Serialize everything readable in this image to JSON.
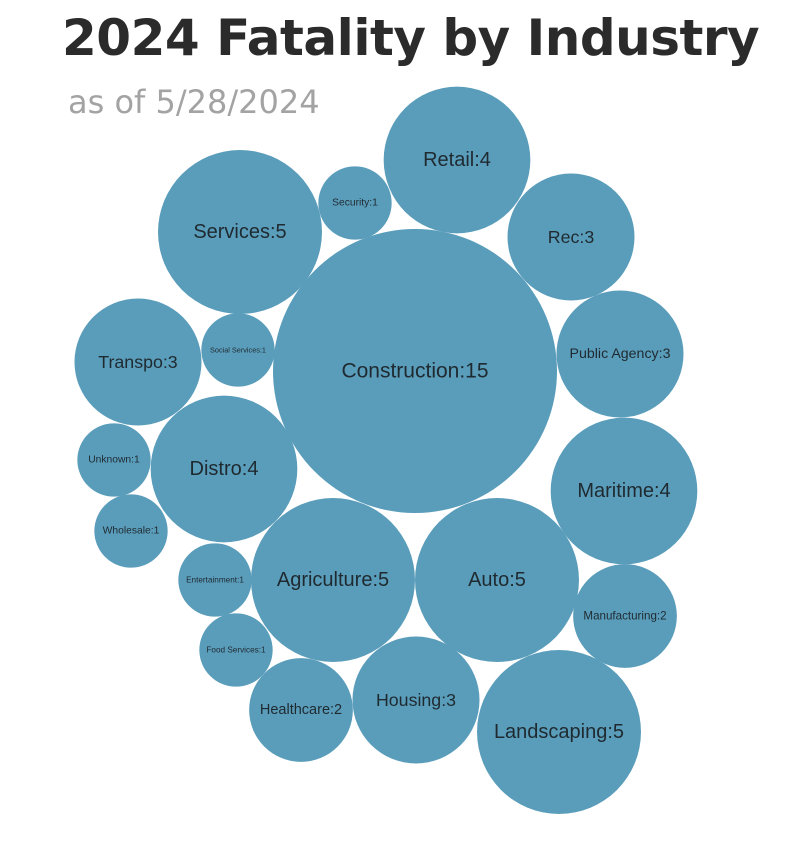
{
  "title": "2024 Fatality by Industry",
  "subtitle": "as of 5/28/2024",
  "colors": {
    "bubble": "#5a9dbb",
    "bubble_label": "#1f2a30",
    "title": "#2b2b2b",
    "subtitle": "#a3a3a3",
    "background": "#ffffff"
  },
  "chart_data": {
    "type": "bubble",
    "title": "2024 Fatality by Industry",
    "subtitle": "as of 5/28/2024",
    "label_format": "{name}:{value}",
    "series": [
      {
        "name": "Construction",
        "value": 15
      },
      {
        "name": "Services",
        "value": 5
      },
      {
        "name": "Agriculture",
        "value": 5
      },
      {
        "name": "Auto",
        "value": 5
      },
      {
        "name": "Landscaping",
        "value": 5
      },
      {
        "name": "Retail",
        "value": 4
      },
      {
        "name": "Distro",
        "value": 4
      },
      {
        "name": "Maritime",
        "value": 4
      },
      {
        "name": "Rec",
        "value": 3
      },
      {
        "name": "Public Agency",
        "value": 3
      },
      {
        "name": "Transpo",
        "value": 3
      },
      {
        "name": "Housing",
        "value": 3
      },
      {
        "name": "Manufacturing",
        "value": 2
      },
      {
        "name": "Healthcare",
        "value": 2
      },
      {
        "name": "Security",
        "value": 1
      },
      {
        "name": "Social Services",
        "value": 1
      },
      {
        "name": "Unknown",
        "value": 1
      },
      {
        "name": "Wholesale",
        "value": 1
      },
      {
        "name": "Entertainment",
        "value": 1
      },
      {
        "name": "Food Services",
        "value": 1
      }
    ]
  }
}
